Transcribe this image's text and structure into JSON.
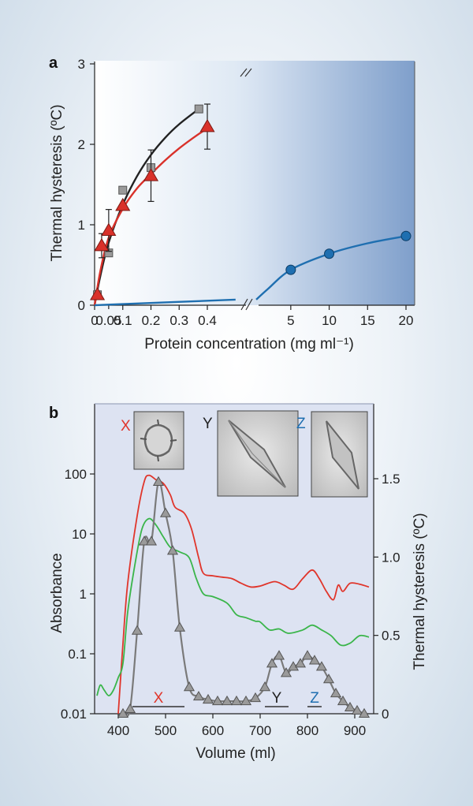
{
  "chart_data": [
    {
      "panel": "a",
      "type": "line",
      "ylabel": "Thermal hysteresis (ºC)",
      "xlabel": "Protein concentration (mg ml⁻¹)",
      "ylim": [
        0,
        3
      ],
      "yticks": [
        "0",
        "1",
        "2",
        "3"
      ],
      "x_left_ticks": [
        "0",
        "0.1",
        "0.2",
        "0.3",
        "0.4"
      ],
      "x_left_minor": [
        "0.05"
      ],
      "x_right_ticks": [
        "5",
        "10",
        "15",
        "20"
      ],
      "break_mark": "//",
      "series": [
        {
          "color": "#9a9a9a",
          "fit_color": "#222222",
          "marker": "square",
          "points": [
            [
              0.01,
              0.13
            ],
            [
              0.05,
              0.65
            ],
            [
              0.1,
              1.43
            ],
            [
              0.2,
              1.71
            ],
            [
              0.37,
              2.44
            ]
          ],
          "errors": [
            0,
            0,
            0,
            0,
            0
          ],
          "fit": [
            [
              0,
              0
            ],
            [
              0.02,
              0.36
            ],
            [
              0.05,
              0.78
            ],
            [
              0.1,
              1.25
            ],
            [
              0.15,
              1.6
            ],
            [
              0.2,
              1.87
            ],
            [
              0.25,
              2.08
            ],
            [
              0.3,
              2.25
            ],
            [
              0.37,
              2.44
            ]
          ]
        },
        {
          "color": "#d9312a",
          "fit_color": "#d9312a",
          "marker": "triangle",
          "points": [
            [
              0.01,
              0.13
            ],
            [
              0.025,
              0.74
            ],
            [
              0.05,
              0.93
            ],
            [
              0.1,
              1.24
            ],
            [
              0.2,
              1.61
            ],
            [
              0.4,
              2.22
            ]
          ],
          "errors": [
            0,
            0.15,
            0.26,
            0,
            0.32,
            0.28
          ],
          "fit": [
            [
              0,
              0
            ],
            [
              0.02,
              0.42
            ],
            [
              0.05,
              0.84
            ],
            [
              0.1,
              1.2
            ],
            [
              0.15,
              1.45
            ],
            [
              0.2,
              1.63
            ],
            [
              0.25,
              1.8
            ],
            [
              0.3,
              1.95
            ],
            [
              0.35,
              2.08
            ],
            [
              0.4,
              2.2
            ]
          ]
        },
        {
          "color": "#1f6fb0",
          "fit_color": "#1f6fb0",
          "marker": "circle",
          "points": [
            [
              5,
              0.44
            ],
            [
              10,
              0.64
            ],
            [
              20,
              0.86
            ]
          ],
          "fit_left": [
            [
              0,
              0
            ],
            [
              0.5,
              0.07
            ]
          ],
          "fit_right": [
            [
              0.5,
              0.07
            ],
            [
              2,
              0.2
            ],
            [
              5,
              0.44
            ],
            [
              10,
              0.64
            ],
            [
              15,
              0.77
            ],
            [
              20,
              0.86
            ]
          ]
        }
      ]
    },
    {
      "panel": "b",
      "type": "line",
      "xlabel": "Volume (ml)",
      "ylabel": "Absorbance",
      "ylabel_right": "Thermal hysteresis (ºC)",
      "xlim": [
        350,
        940
      ],
      "xticks": [
        "400",
        "500",
        "600",
        "700",
        "800",
        "900"
      ],
      "yticks_left": [
        "0.01",
        "0.1",
        "1",
        "10",
        "100"
      ],
      "yticks_right": [
        "0",
        "0.5",
        "1.0",
        "1.5"
      ],
      "ylim_left_log": [
        0.01,
        1000
      ],
      "ylim_right": [
        0,
        2.25
      ],
      "series": [
        {
          "axis": "left",
          "color": "#e0352b",
          "points": [
            [
              400,
              0.01
            ],
            [
              410,
              0.15
            ],
            [
              420,
              1.5
            ],
            [
              440,
              20
            ],
            [
              455,
              75
            ],
            [
              465,
              95
            ],
            [
              480,
              80
            ],
            [
              495,
              70
            ],
            [
              510,
              45
            ],
            [
              520,
              28
            ],
            [
              540,
              22
            ],
            [
              555,
              12
            ],
            [
              570,
              4
            ],
            [
              580,
              2.2
            ],
            [
              600,
              2
            ],
            [
              620,
              1.9
            ],
            [
              640,
              1.8
            ],
            [
              660,
              1.5
            ],
            [
              680,
              1.3
            ],
            [
              700,
              1.35
            ],
            [
              730,
              1.6
            ],
            [
              750,
              1.4
            ],
            [
              770,
              1.2
            ],
            [
              790,
              1.8
            ],
            [
              810,
              2.5
            ],
            [
              825,
              1.8
            ],
            [
              840,
              1.1
            ],
            [
              855,
              0.8
            ],
            [
              865,
              1.4
            ],
            [
              875,
              1.1
            ],
            [
              890,
              1.5
            ],
            [
              910,
              1.45
            ],
            [
              930,
              1.3
            ]
          ]
        },
        {
          "axis": "left",
          "color": "#3ab54a",
          "points": [
            [
              355,
              0.02
            ],
            [
              362,
              0.03
            ],
            [
              370,
              0.025
            ],
            [
              380,
              0.02
            ],
            [
              390,
              0.025
            ],
            [
              400,
              0.04
            ],
            [
              410,
              0.07
            ],
            [
              420,
              0.5
            ],
            [
              435,
              3
            ],
            [
              450,
              12
            ],
            [
              465,
              18
            ],
            [
              480,
              14
            ],
            [
              495,
              9
            ],
            [
              510,
              6
            ],
            [
              530,
              5
            ],
            [
              550,
              4
            ],
            [
              565,
              1.8
            ],
            [
              580,
              1
            ],
            [
              600,
              0.9
            ],
            [
              630,
              0.7
            ],
            [
              650,
              0.45
            ],
            [
              670,
              0.4
            ],
            [
              690,
              0.35
            ],
            [
              700,
              0.34
            ],
            [
              720,
              0.25
            ],
            [
              740,
              0.26
            ],
            [
              760,
              0.22
            ],
            [
              790,
              0.25
            ],
            [
              810,
              0.3
            ],
            [
              830,
              0.25
            ],
            [
              850,
              0.2
            ],
            [
              870,
              0.14
            ],
            [
              890,
              0.15
            ],
            [
              910,
              0.2
            ],
            [
              930,
              0.19
            ]
          ]
        },
        {
          "axis": "right",
          "color": "#7a7a7a",
          "marker": "triangle",
          "points": [
            [
              410,
              0
            ],
            [
              425,
              0.03
            ],
            [
              440,
              0.53
            ],
            [
              455,
              1.1
            ],
            [
              470,
              1.1
            ],
            [
              485,
              1.48
            ],
            [
              500,
              1.28
            ],
            [
              515,
              1.04
            ],
            [
              530,
              0.55
            ],
            [
              550,
              0.17
            ],
            [
              570,
              0.11
            ],
            [
              590,
              0.09
            ],
            [
              610,
              0.08
            ],
            [
              630,
              0.08
            ],
            [
              650,
              0.08
            ],
            [
              670,
              0.08
            ],
            [
              690,
              0.1
            ],
            [
              710,
              0.17
            ],
            [
              725,
              0.32
            ],
            [
              740,
              0.37
            ],
            [
              755,
              0.26
            ],
            [
              770,
              0.3
            ],
            [
              785,
              0.32
            ],
            [
              800,
              0.37
            ],
            [
              815,
              0.34
            ],
            [
              830,
              0.3
            ],
            [
              845,
              0.22
            ],
            [
              860,
              0.13
            ],
            [
              875,
              0.08
            ],
            [
              890,
              0.04
            ],
            [
              905,
              0.02
            ],
            [
              920,
              0
            ]
          ]
        }
      ],
      "fractions": [
        {
          "label": "X",
          "color": "#e0352b",
          "range": [
            430,
            540
          ]
        },
        {
          "label": "Y",
          "color": "#222222",
          "range": [
            710,
            760
          ]
        },
        {
          "label": "Z",
          "color": "#1f6fb0",
          "range": [
            800,
            830
          ]
        }
      ]
    }
  ],
  "panel_labels": {
    "a": "a",
    "b": "b"
  },
  "images": [
    {
      "label": "X",
      "color": "#e0352b"
    },
    {
      "label": "Y",
      "color": "#222222"
    },
    {
      "label": "Z",
      "color": "#1f6fb0"
    }
  ]
}
